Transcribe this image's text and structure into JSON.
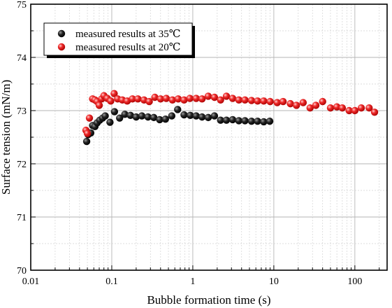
{
  "chart_data": {
    "type": "scatter",
    "xlabel": "Bubble formation time (s)",
    "ylabel": "Surface tension (mN/m)",
    "x_scale": "log",
    "xlim": [
      0.01,
      250
    ],
    "ylim": [
      70,
      75
    ],
    "x_ticks": [
      0.01,
      0.1,
      1,
      10,
      100
    ],
    "x_tick_labels": [
      "0.01",
      "0.1",
      "1",
      "10",
      "100"
    ],
    "y_ticks": [
      70,
      71,
      72,
      73,
      74,
      75
    ],
    "y_tick_labels": [
      "70",
      "71",
      "72",
      "73",
      "74",
      "75"
    ],
    "grid": true,
    "legend_position": "top-left",
    "series": [
      {
        "name": "measured results at 35℃",
        "color": "#111111",
        "points": [
          [
            0.049,
            72.42
          ],
          [
            0.051,
            72.55
          ],
          [
            0.055,
            72.58
          ],
          [
            0.058,
            72.72
          ],
          [
            0.062,
            72.7
          ],
          [
            0.066,
            72.77
          ],
          [
            0.071,
            72.82
          ],
          [
            0.077,
            72.86
          ],
          [
            0.083,
            72.9
          ],
          [
            0.095,
            72.78
          ],
          [
            0.108,
            72.98
          ],
          [
            0.125,
            72.86
          ],
          [
            0.145,
            72.93
          ],
          [
            0.17,
            72.91
          ],
          [
            0.2,
            72.88
          ],
          [
            0.235,
            72.9
          ],
          [
            0.28,
            72.88
          ],
          [
            0.33,
            72.87
          ],
          [
            0.39,
            72.83
          ],
          [
            0.46,
            72.84
          ],
          [
            0.55,
            72.9
          ],
          [
            0.65,
            73.02
          ],
          [
            0.78,
            72.92
          ],
          [
            0.93,
            72.91
          ],
          [
            1.1,
            72.9
          ],
          [
            1.3,
            72.88
          ],
          [
            1.55,
            72.87
          ],
          [
            1.85,
            72.9
          ],
          [
            2.2,
            72.82
          ],
          [
            2.6,
            72.82
          ],
          [
            3.1,
            72.83
          ],
          [
            3.7,
            72.81
          ],
          [
            4.4,
            72.81
          ],
          [
            5.3,
            72.8
          ],
          [
            6.3,
            72.8
          ],
          [
            7.5,
            72.79
          ],
          [
            8.9,
            72.8
          ]
        ]
      },
      {
        "name": "measured results at 20℃",
        "color": "#e0201c",
        "points": [
          [
            0.048,
            72.63
          ],
          [
            0.05,
            72.57
          ],
          [
            0.053,
            72.86
          ],
          [
            0.058,
            73.22
          ],
          [
            0.062,
            73.2
          ],
          [
            0.066,
            73.17
          ],
          [
            0.07,
            73.1
          ],
          [
            0.075,
            73.22
          ],
          [
            0.08,
            73.28
          ],
          [
            0.088,
            73.23
          ],
          [
            0.097,
            73.18
          ],
          [
            0.107,
            73.32
          ],
          [
            0.118,
            73.22
          ],
          [
            0.135,
            73.2
          ],
          [
            0.155,
            73.18
          ],
          [
            0.18,
            73.22
          ],
          [
            0.21,
            73.22
          ],
          [
            0.25,
            73.2
          ],
          [
            0.29,
            73.17
          ],
          [
            0.34,
            73.25
          ],
          [
            0.4,
            73.22
          ],
          [
            0.47,
            73.23
          ],
          [
            0.56,
            73.2
          ],
          [
            0.66,
            73.22
          ],
          [
            0.78,
            73.2
          ],
          [
            0.92,
            73.23
          ],
          [
            1.1,
            73.23
          ],
          [
            1.3,
            73.22
          ],
          [
            1.55,
            73.27
          ],
          [
            1.85,
            73.25
          ],
          [
            2.2,
            73.2
          ],
          [
            2.6,
            73.27
          ],
          [
            3.1,
            73.23
          ],
          [
            3.7,
            73.2
          ],
          [
            4.4,
            73.2
          ],
          [
            5.3,
            73.19
          ],
          [
            6.3,
            73.18
          ],
          [
            7.5,
            73.18
          ],
          [
            9,
            73.17
          ],
          [
            11,
            73.15
          ],
          [
            13,
            73.17
          ],
          [
            16,
            73.13
          ],
          [
            19,
            73.1
          ],
          [
            23,
            73.15
          ],
          [
            28,
            73.05
          ],
          [
            33,
            73.1
          ],
          [
            40,
            73.17
          ],
          [
            50,
            73.05
          ],
          [
            60,
            73.07
          ],
          [
            70,
            73.05
          ],
          [
            85,
            73.0
          ],
          [
            100,
            73.0
          ],
          [
            120,
            73.05
          ],
          [
            150,
            73.05
          ],
          [
            175,
            72.97
          ]
        ]
      }
    ]
  }
}
